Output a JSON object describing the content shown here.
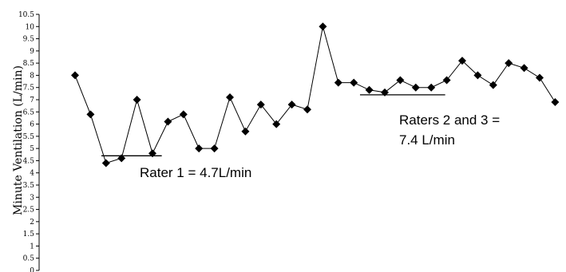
{
  "chart_data": {
    "type": "line",
    "title": "",
    "xlabel": "",
    "ylabel": "Minute Ventilation (L/min)",
    "ylim": [
      0,
      10.5
    ],
    "yticks": [
      "0",
      "0.5",
      "1",
      "1.5",
      "2",
      "2.5",
      "3",
      "3.5",
      "4",
      "4.5",
      "5",
      "5.5",
      "6",
      "6.5",
      "7",
      "7.5",
      "8",
      "8.5",
      "9",
      "9.5",
      "10",
      "10.5"
    ],
    "grid": false,
    "legend": "none",
    "series": [
      {
        "color": "#000000",
        "marker": "diamond",
        "values": [
          8.0,
          6.4,
          4.4,
          4.6,
          7.0,
          4.8,
          6.1,
          6.4,
          5.0,
          5.0,
          7.1,
          5.7,
          6.8,
          6.0,
          6.8,
          6.6,
          10.0,
          7.7,
          7.7,
          7.4,
          7.3,
          7.8,
          7.5,
          7.5,
          7.8,
          8.6,
          8.0,
          7.6,
          8.5,
          8.3,
          7.9,
          6.9
        ]
      }
    ],
    "reference_lines": [
      {
        "x_start": 1.7,
        "x_end": 5.6,
        "y": 4.7
      },
      {
        "x_start": 18.4,
        "x_end": 23.9,
        "y": 7.2
      }
    ],
    "annotations": [
      {
        "text": "Rater 1 = 4.7L/min"
      },
      {
        "text": "Raters 2 and 3 =",
        "text2": "7.4 L/min"
      }
    ]
  }
}
